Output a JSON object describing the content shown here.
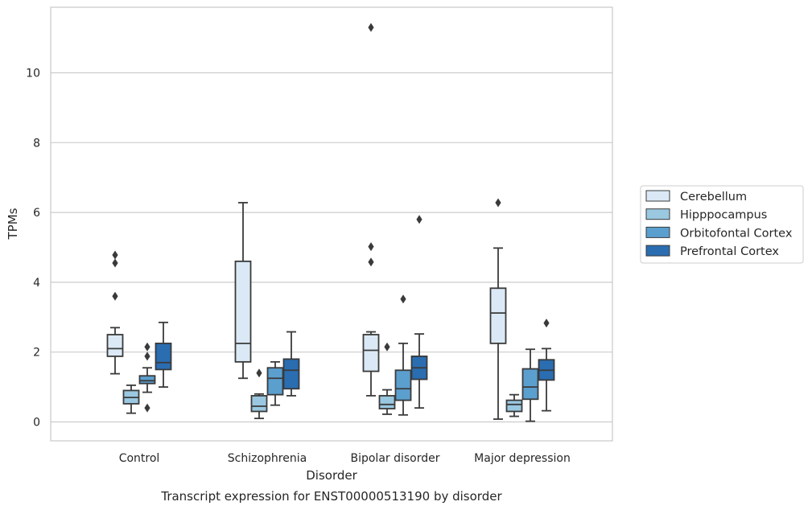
{
  "chart_data": {
    "type": "box",
    "xlabel": "Disorder",
    "ylabel": "TPMs",
    "caption": "Transcript expression for ENST00000513190 by disorder",
    "ylim": [
      -0.55,
      11.9
    ],
    "yticks": [
      0,
      2,
      4,
      6,
      8,
      10
    ],
    "grid": "horizontal",
    "legend_position": "right",
    "categories": [
      "Control",
      "Schizophrenia",
      "Bipolar disorder",
      "Major depression"
    ],
    "series": [
      {
        "name": "Cerebellum",
        "color": "#dbe9f6",
        "boxes": [
          {
            "whisker_low": 1.38,
            "q1": 1.88,
            "median": 2.1,
            "q3": 2.5,
            "whisker_high": 2.7,
            "outliers": [
              3.6,
              4.55,
              4.78
            ]
          },
          {
            "whisker_low": 1.25,
            "q1": 1.72,
            "median": 2.25,
            "q3": 4.6,
            "whisker_high": 6.28,
            "outliers": []
          },
          {
            "whisker_low": 0.75,
            "q1": 1.45,
            "median": 2.05,
            "q3": 2.5,
            "whisker_high": 2.58,
            "outliers": [
              4.58,
              5.02,
              11.3
            ]
          },
          {
            "whisker_low": 0.08,
            "q1": 2.25,
            "median": 3.12,
            "q3": 3.83,
            "whisker_high": 4.98,
            "outliers": [
              6.28
            ]
          }
        ]
      },
      {
        "name": "Hipppocampus",
        "color": "#9ac8e0",
        "boxes": [
          {
            "whisker_low": 0.25,
            "q1": 0.52,
            "median": 0.7,
            "q3": 0.9,
            "whisker_high": 1.05,
            "outliers": []
          },
          {
            "whisker_low": 0.1,
            "q1": 0.3,
            "median": 0.45,
            "q3": 0.75,
            "whisker_high": 0.8,
            "outliers": [
              1.4
            ]
          },
          {
            "whisker_low": 0.22,
            "q1": 0.38,
            "median": 0.5,
            "q3": 0.75,
            "whisker_high": 0.92,
            "outliers": [
              2.15
            ]
          },
          {
            "whisker_low": 0.16,
            "q1": 0.3,
            "median": 0.5,
            "q3": 0.62,
            "whisker_high": 0.78,
            "outliers": []
          }
        ]
      },
      {
        "name": "Orbitofontal Cortex",
        "color": "#5b9fcf",
        "boxes": [
          {
            "whisker_low": 0.85,
            "q1": 1.1,
            "median": 1.18,
            "q3": 1.32,
            "whisker_high": 1.55,
            "outliers": [
              0.4,
              1.88,
              2.15
            ]
          },
          {
            "whisker_low": 0.48,
            "q1": 0.78,
            "median": 1.25,
            "q3": 1.55,
            "whisker_high": 1.72,
            "outliers": []
          },
          {
            "whisker_low": 0.2,
            "q1": 0.62,
            "median": 0.95,
            "q3": 1.48,
            "whisker_high": 2.25,
            "outliers": [
              3.52
            ]
          },
          {
            "whisker_low": 0.02,
            "q1": 0.65,
            "median": 1.0,
            "q3": 1.52,
            "whisker_high": 2.08,
            "outliers": []
          }
        ]
      },
      {
        "name": "Prefrontal Cortex",
        "color": "#2a6db1",
        "boxes": [
          {
            "whisker_low": 1.0,
            "q1": 1.5,
            "median": 1.7,
            "q3": 2.25,
            "whisker_high": 2.85,
            "outliers": []
          },
          {
            "whisker_low": 0.75,
            "q1": 0.95,
            "median": 1.48,
            "q3": 1.8,
            "whisker_high": 2.58,
            "outliers": []
          },
          {
            "whisker_low": 0.4,
            "q1": 1.22,
            "median": 1.55,
            "q3": 1.88,
            "whisker_high": 2.52,
            "outliers": [
              5.8
            ]
          },
          {
            "whisker_low": 0.32,
            "q1": 1.2,
            "median": 1.48,
            "q3": 1.78,
            "whisker_high": 2.1,
            "outliers": [
              2.83
            ]
          }
        ]
      }
    ]
  }
}
